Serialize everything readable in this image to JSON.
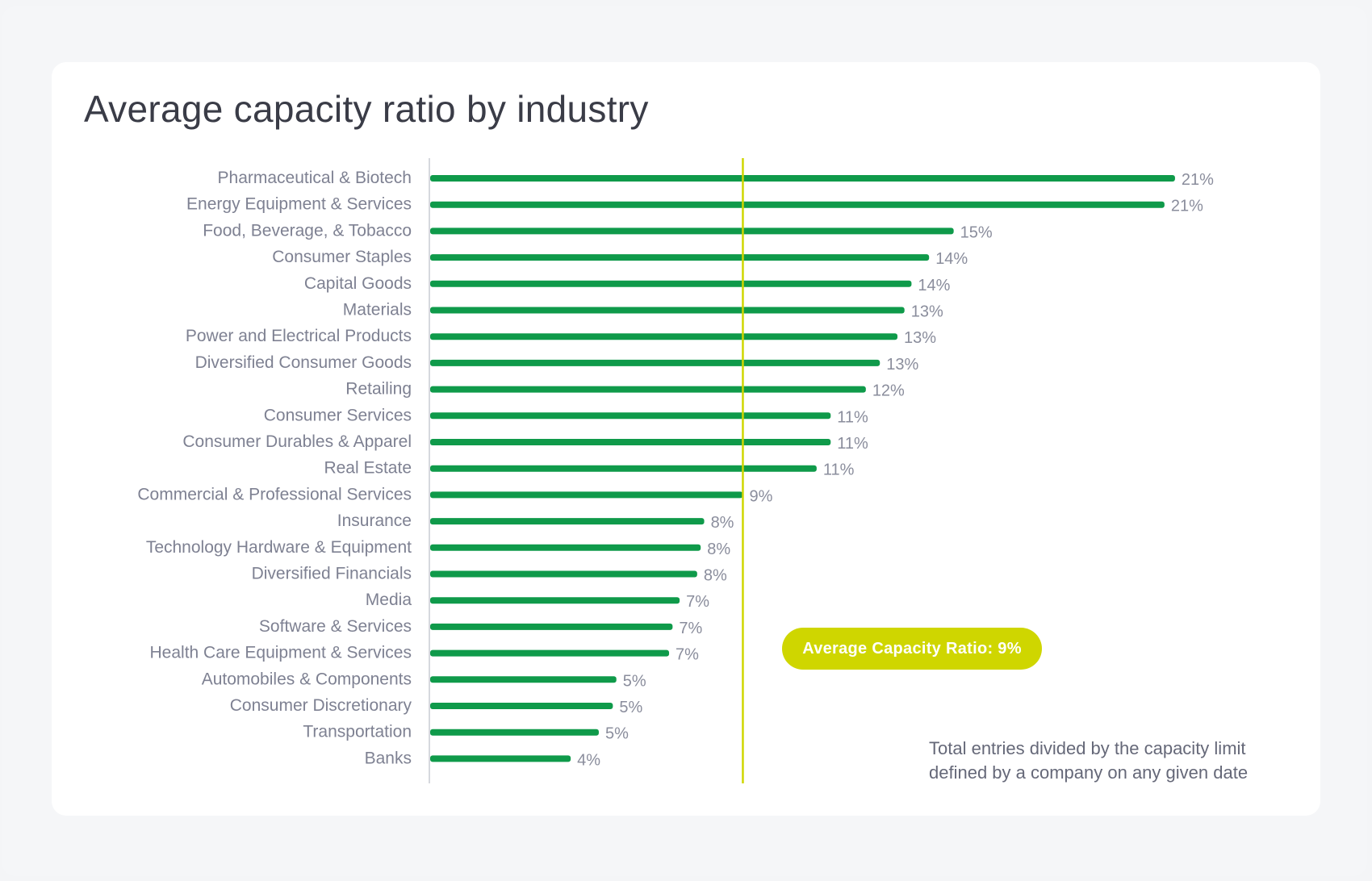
{
  "title": "Average capacity ratio by industry",
  "colors": {
    "bar": "#0f9a4a",
    "average_line": "#cfd600",
    "axis": "#c9cbd3"
  },
  "chart_data": {
    "type": "bar",
    "orientation": "horizontal",
    "title": "Average capacity ratio by industry",
    "xlabel": "",
    "ylabel": "",
    "xlim": [
      0,
      23.2
    ],
    "grid": false,
    "categories": [
      "Pharmaceutical & Biotech",
      "Energy Equipment & Services",
      "Food, Beverage, & Tobacco",
      "Consumer Staples",
      "Capital Goods",
      "Materials",
      "Power and Electrical Products",
      "Diversified Consumer Goods",
      "Retailing",
      "Consumer Services",
      "Consumer Durables & Apparel",
      "Real Estate",
      "Commercial & Professional Services",
      "Insurance",
      "Technology Hardware & Equipment",
      "Diversified Financials",
      "Media",
      "Software & Services",
      "Health Care Equipment & Services",
      "Automobiles & Components",
      "Consumer Discretionary",
      "Transportation",
      "Banks"
    ],
    "values": [
      21.2,
      20.9,
      14.9,
      14.2,
      13.7,
      13.5,
      13.3,
      12.8,
      12.4,
      11.4,
      11.4,
      11.0,
      8.9,
      7.8,
      7.7,
      7.6,
      7.1,
      6.9,
      6.8,
      5.3,
      5.2,
      4.8,
      4.0
    ],
    "value_labels": [
      "21%",
      "21%",
      "15%",
      "14%",
      "14%",
      "13%",
      "13%",
      "13%",
      "12%",
      "11%",
      "11%",
      "11%",
      "9%",
      "8%",
      "8%",
      "8%",
      "7%",
      "7%",
      "7%",
      "5%",
      "5%",
      "5%",
      "4%"
    ],
    "average": 8.9,
    "average_label": "Average Capacity Ratio: 9%"
  },
  "footnote": {
    "line1": "Total entries divided by the capacity limit",
    "line2": "defined by a company on any given date"
  }
}
